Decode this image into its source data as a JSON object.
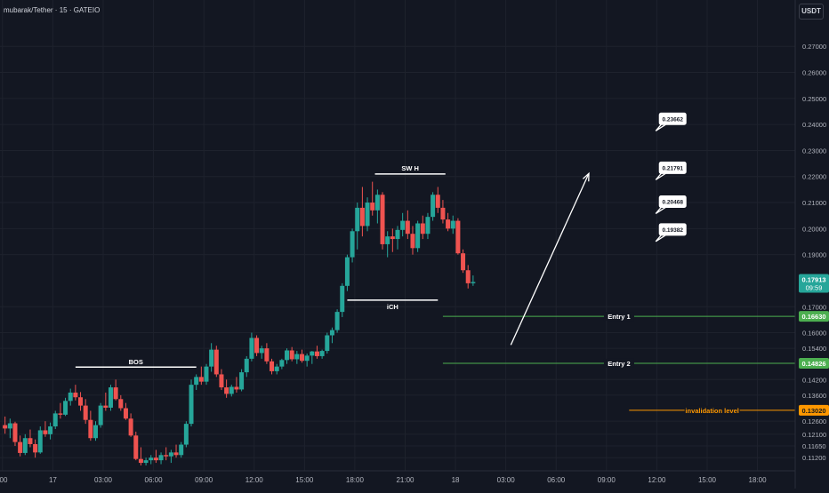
{
  "header": {
    "symbol": "mubarak/Tether · 15 · GATEIO",
    "currency": "USDT"
  },
  "colors": {
    "bg": "#131722",
    "up": "#26a69a",
    "down": "#ef5350",
    "grid": "#1e222d",
    "axis_text": "#b2b5be",
    "entry": "#4caf50",
    "invalid": "#ff9800",
    "white": "#ffffff"
  },
  "chart_data": {
    "type": "candlestick",
    "ylim": [
      0.109,
      0.281
    ],
    "y_ticks": [
      "0.27000",
      "0.26000",
      "0.25000",
      "0.24000",
      "0.23000",
      "0.22000",
      "0.21000",
      "0.20000",
      "0.19000",
      "0.17000",
      "0.16000",
      "0.15400",
      "0.14200",
      "0.13600",
      "0.12600",
      "0.12100",
      "0.11650",
      "0.11200"
    ],
    "x_ticks": [
      ":00",
      "17",
      "03:00",
      "06:00",
      "09:00",
      "12:00",
      "15:00",
      "18:00",
      "21:00",
      "18",
      "03:00",
      "06:00",
      "09:00",
      "12:00",
      "15:00",
      "18:00"
    ],
    "x_range": [
      -0.05,
      15.75
    ],
    "candles": [
      [
        0.05,
        0.1245,
        0.1278,
        0.1212,
        0.1232
      ],
      [
        0.15,
        0.1232,
        0.127,
        0.1195,
        0.1252
      ],
      [
        0.25,
        0.1252,
        0.1258,
        0.1165,
        0.118
      ],
      [
        0.35,
        0.118,
        0.1205,
        0.1125,
        0.1138
      ],
      [
        0.45,
        0.1138,
        0.121,
        0.113,
        0.1195
      ],
      [
        0.55,
        0.1195,
        0.1228,
        0.116,
        0.1172
      ],
      [
        0.65,
        0.1172,
        0.119,
        0.112,
        0.114
      ],
      [
        0.75,
        0.114,
        0.124,
        0.1135,
        0.1225
      ],
      [
        0.85,
        0.1225,
        0.126,
        0.12,
        0.121
      ],
      [
        0.95,
        0.121,
        0.1255,
        0.119,
        0.124
      ],
      [
        1.05,
        0.124,
        0.13,
        0.123,
        0.129
      ],
      [
        1.15,
        0.129,
        0.133,
        0.127,
        0.1285
      ],
      [
        1.25,
        0.1285,
        0.135,
        0.128,
        0.1338
      ],
      [
        1.35,
        0.1338,
        0.1385,
        0.132,
        0.137
      ],
      [
        1.45,
        0.137,
        0.14,
        0.134,
        0.1352
      ],
      [
        1.55,
        0.1352,
        0.1372,
        0.13,
        0.132
      ],
      [
        1.65,
        0.132,
        0.1345,
        0.125,
        0.1265
      ],
      [
        1.75,
        0.1265,
        0.13,
        0.1185,
        0.1195
      ],
      [
        1.85,
        0.1195,
        0.126,
        0.1185,
        0.1245
      ],
      [
        1.95,
        0.1245,
        0.133,
        0.1235,
        0.132
      ],
      [
        2.05,
        0.132,
        0.137,
        0.13,
        0.1312
      ],
      [
        2.15,
        0.1312,
        0.14,
        0.13,
        0.139
      ],
      [
        2.25,
        0.139,
        0.142,
        0.134,
        0.1345
      ],
      [
        2.35,
        0.1345,
        0.136,
        0.13,
        0.131
      ],
      [
        2.45,
        0.131,
        0.133,
        0.1265,
        0.127
      ],
      [
        2.55,
        0.127,
        0.129,
        0.12,
        0.1205
      ],
      [
        2.65,
        0.1205,
        0.122,
        0.111,
        0.1115
      ],
      [
        2.75,
        0.1115,
        0.116,
        0.109,
        0.11
      ],
      [
        2.85,
        0.11,
        0.112,
        0.109,
        0.111
      ],
      [
        2.95,
        0.111,
        0.113,
        0.1095,
        0.112
      ],
      [
        3.05,
        0.112,
        0.115,
        0.11,
        0.111
      ],
      [
        3.15,
        0.111,
        0.114,
        0.1095,
        0.113
      ],
      [
        3.25,
        0.113,
        0.116,
        0.111,
        0.1125
      ],
      [
        3.35,
        0.1125,
        0.115,
        0.11,
        0.114
      ],
      [
        3.45,
        0.114,
        0.117,
        0.112,
        0.113
      ],
      [
        3.55,
        0.113,
        0.118,
        0.112,
        0.117
      ],
      [
        3.65,
        0.117,
        0.126,
        0.116,
        0.125
      ],
      [
        3.75,
        0.125,
        0.142,
        0.124,
        0.14
      ],
      [
        3.85,
        0.14,
        0.144,
        0.138,
        0.143
      ],
      [
        3.95,
        0.143,
        0.147,
        0.14,
        0.1412
      ],
      [
        4.05,
        0.1412,
        0.148,
        0.14,
        0.147
      ],
      [
        4.15,
        0.147,
        0.156,
        0.145,
        0.1535
      ],
      [
        4.25,
        0.1535,
        0.155,
        0.143,
        0.144
      ],
      [
        4.35,
        0.144,
        0.146,
        0.138,
        0.139
      ],
      [
        4.45,
        0.139,
        0.142,
        0.135,
        0.1365
      ],
      [
        4.55,
        0.1365,
        0.14,
        0.1355,
        0.1392
      ],
      [
        4.65,
        0.1392,
        0.143,
        0.137,
        0.1382
      ],
      [
        4.75,
        0.1382,
        0.146,
        0.1375,
        0.1448
      ],
      [
        4.85,
        0.1448,
        0.151,
        0.143,
        0.15
      ],
      [
        4.95,
        0.15,
        0.16,
        0.149,
        0.158
      ],
      [
        5.05,
        0.158,
        0.159,
        0.151,
        0.1522
      ],
      [
        5.15,
        0.1522,
        0.155,
        0.15,
        0.154
      ],
      [
        5.25,
        0.154,
        0.156,
        0.148,
        0.149
      ],
      [
        5.35,
        0.149,
        0.15,
        0.144,
        0.1452
      ],
      [
        5.45,
        0.1452,
        0.148,
        0.144,
        0.147
      ],
      [
        5.55,
        0.147,
        0.15,
        0.146,
        0.1495
      ],
      [
        5.65,
        0.1495,
        0.154,
        0.148,
        0.1532
      ],
      [
        5.75,
        0.1532,
        0.1545,
        0.149,
        0.1498
      ],
      [
        5.85,
        0.1498,
        0.153,
        0.148,
        0.1518
      ],
      [
        5.95,
        0.1518,
        0.1535,
        0.1485,
        0.1492
      ],
      [
        6.05,
        0.1492,
        0.152,
        0.147,
        0.1512
      ],
      [
        6.15,
        0.1512,
        0.153,
        0.148,
        0.1528
      ],
      [
        6.25,
        0.1528,
        0.155,
        0.15,
        0.151
      ],
      [
        6.35,
        0.151,
        0.1535,
        0.15,
        0.153
      ],
      [
        6.45,
        0.153,
        0.16,
        0.152,
        0.159
      ],
      [
        6.55,
        0.159,
        0.162,
        0.156,
        0.161
      ],
      [
        6.65,
        0.161,
        0.169,
        0.16,
        0.168
      ],
      [
        6.75,
        0.168,
        0.179,
        0.166,
        0.178
      ],
      [
        6.85,
        0.178,
        0.19,
        0.176,
        0.189
      ],
      [
        6.95,
        0.189,
        0.2,
        0.187,
        0.199
      ],
      [
        7.05,
        0.199,
        0.21,
        0.192,
        0.208
      ],
      [
        7.15,
        0.208,
        0.216,
        0.197,
        0.201
      ],
      [
        7.25,
        0.201,
        0.212,
        0.199,
        0.21
      ],
      [
        7.35,
        0.21,
        0.218,
        0.205,
        0.207
      ],
      [
        7.45,
        0.207,
        0.215,
        0.202,
        0.213
      ],
      [
        7.55,
        0.213,
        0.214,
        0.192,
        0.194
      ],
      [
        7.65,
        0.194,
        0.199,
        0.189,
        0.197
      ],
      [
        7.75,
        0.197,
        0.2,
        0.191,
        0.196
      ],
      [
        7.85,
        0.196,
        0.201,
        0.192,
        0.1995
      ],
      [
        7.95,
        0.1995,
        0.206,
        0.197,
        0.203
      ],
      [
        8.05,
        0.203,
        0.207,
        0.196,
        0.198
      ],
      [
        8.15,
        0.198,
        0.201,
        0.19,
        0.1925
      ],
      [
        8.25,
        0.1925,
        0.203,
        0.191,
        0.202
      ],
      [
        8.35,
        0.202,
        0.205,
        0.196,
        0.198
      ],
      [
        8.45,
        0.198,
        0.206,
        0.196,
        0.2045
      ],
      [
        8.55,
        0.2045,
        0.214,
        0.203,
        0.213
      ],
      [
        8.65,
        0.213,
        0.216,
        0.206,
        0.208
      ],
      [
        8.75,
        0.208,
        0.211,
        0.202,
        0.2035
      ],
      [
        8.85,
        0.2035,
        0.206,
        0.199,
        0.2
      ],
      [
        8.95,
        0.2,
        0.205,
        0.198,
        0.203
      ],
      [
        9.05,
        0.203,
        0.204,
        0.19,
        0.1905
      ],
      [
        9.15,
        0.1905,
        0.192,
        0.183,
        0.184
      ],
      [
        9.25,
        0.184,
        0.186,
        0.177,
        0.179
      ],
      [
        9.35,
        0.179,
        0.182,
        0.178,
        0.1795
      ]
    ],
    "annotations": {
      "bos": {
        "label": "BOS",
        "x1": 1.45,
        "x2": 3.85,
        "y": 0.1468
      },
      "swh": {
        "label": "SW H",
        "x1": 7.4,
        "x2": 8.8,
        "y": 0.221
      },
      "ich": {
        "label": "iCH",
        "x1": 6.85,
        "x2": 8.65,
        "y": 0.1725
      },
      "entry1": {
        "label": "Entry 1",
        "price": "0.16630",
        "y": 0.1663,
        "x1": 8.75
      },
      "entry2": {
        "label": "Entry 2",
        "price": "0.14826",
        "y": 0.14826,
        "x1": 8.75
      },
      "invalidation": {
        "label": "invalidation level",
        "price": "0.13020",
        "y": 0.1302,
        "x1": 12.45
      },
      "arrow": {
        "x1": 10.1,
        "y1": 0.1553,
        "x2": 11.65,
        "y2": 0.2212
      },
      "targets": [
        {
          "label": "0.23662",
          "x": 13.05,
          "y": 0.242
        },
        {
          "label": "0.21791",
          "x": 13.05,
          "y": 0.2232
        },
        {
          "label": "0.20468",
          "x": 13.05,
          "y": 0.2102
        },
        {
          "label": "0.19382",
          "x": 13.05,
          "y": 0.1995
        }
      ]
    },
    "last_price": {
      "price": "0.17913",
      "time": "09:59",
      "y": 0.17913
    }
  }
}
